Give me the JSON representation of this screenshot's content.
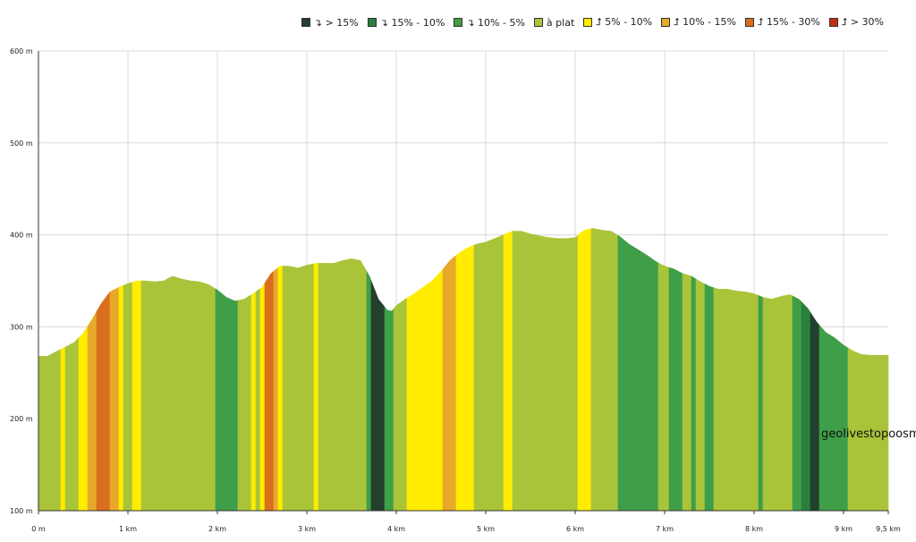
{
  "legend": [
    {
      "label": "↴ > 15%",
      "color": "#233f2e"
    },
    {
      "label": "↴ 15% - 10%",
      "color": "#2a7f3c"
    },
    {
      "label": "↴ 10% - 5%",
      "color": "#3f9e48"
    },
    {
      "label": "à plat",
      "color": "#aac43a"
    },
    {
      "label": "⮥ 5% - 10%",
      "color": "#ffec00"
    },
    {
      "label": "⮥ 10% - 15%",
      "color": "#e8a92a"
    },
    {
      "label": "⮥ 15% - 30%",
      "color": "#d96e1c"
    },
    {
      "label": "⮥ > 30%",
      "color": "#c62b15"
    }
  ],
  "watermark": "geolivestopoosm",
  "chart_data": {
    "type": "area",
    "title": "",
    "xlabel": "",
    "ylabel": "",
    "xlim": [
      0,
      9.5
    ],
    "ylim": [
      100,
      600
    ],
    "x_ticks": [
      {
        "v": 0,
        "label": "0 m"
      },
      {
        "v": 1,
        "label": "1 km"
      },
      {
        "v": 2,
        "label": "2 km"
      },
      {
        "v": 3,
        "label": "3 km"
      },
      {
        "v": 4,
        "label": "4 km"
      },
      {
        "v": 5,
        "label": "5 km"
      },
      {
        "v": 6,
        "label": "6 km"
      },
      {
        "v": 7,
        "label": "7 km"
      },
      {
        "v": 8,
        "label": "8 km"
      },
      {
        "v": 9,
        "label": "9 km"
      },
      {
        "v": 9.5,
        "label": "9,5 km"
      }
    ],
    "y_ticks": [
      {
        "v": 100,
        "label": "100 m"
      },
      {
        "v": 200,
        "label": "200 m"
      },
      {
        "v": 300,
        "label": "300 m"
      },
      {
        "v": 400,
        "label": "400 m"
      },
      {
        "v": 500,
        "label": "500 m"
      },
      {
        "v": 600,
        "label": "600 m"
      }
    ],
    "grid": true,
    "legend_position": "top-right",
    "profile": [
      [
        0,
        268
      ],
      [
        0.1,
        268
      ],
      [
        0.2,
        273
      ],
      [
        0.3,
        278
      ],
      [
        0.4,
        283
      ],
      [
        0.5,
        293
      ],
      [
        0.6,
        308
      ],
      [
        0.7,
        325
      ],
      [
        0.8,
        338
      ],
      [
        0.9,
        343
      ],
      [
        1.0,
        347
      ],
      [
        1.1,
        350
      ],
      [
        1.2,
        350
      ],
      [
        1.3,
        349
      ],
      [
        1.4,
        350
      ],
      [
        1.5,
        355
      ],
      [
        1.6,
        352
      ],
      [
        1.7,
        350
      ],
      [
        1.8,
        349
      ],
      [
        1.9,
        346
      ],
      [
        2.0,
        340
      ],
      [
        2.1,
        332
      ],
      [
        2.2,
        328
      ],
      [
        2.3,
        330
      ],
      [
        2.4,
        336
      ],
      [
        2.5,
        343
      ],
      [
        2.6,
        358
      ],
      [
        2.7,
        366
      ],
      [
        2.8,
        366
      ],
      [
        2.9,
        364
      ],
      [
        3.0,
        367
      ],
      [
        3.1,
        369
      ],
      [
        3.2,
        369
      ],
      [
        3.3,
        369
      ],
      [
        3.4,
        372
      ],
      [
        3.5,
        374
      ],
      [
        3.6,
        372
      ],
      [
        3.7,
        355
      ],
      [
        3.8,
        330
      ],
      [
        3.9,
        318
      ],
      [
        3.95,
        317
      ],
      [
        4.0,
        323
      ],
      [
        4.1,
        330
      ],
      [
        4.2,
        336
      ],
      [
        4.3,
        343
      ],
      [
        4.4,
        350
      ],
      [
        4.5,
        360
      ],
      [
        4.6,
        372
      ],
      [
        4.7,
        380
      ],
      [
        4.8,
        386
      ],
      [
        4.9,
        390
      ],
      [
        5.0,
        392
      ],
      [
        5.1,
        396
      ],
      [
        5.2,
        400
      ],
      [
        5.3,
        404
      ],
      [
        5.4,
        404
      ],
      [
        5.5,
        401
      ],
      [
        5.6,
        399
      ],
      [
        5.7,
        397
      ],
      [
        5.8,
        396
      ],
      [
        5.9,
        396
      ],
      [
        6.0,
        397
      ],
      [
        6.1,
        405
      ],
      [
        6.2,
        407
      ],
      [
        6.3,
        405
      ],
      [
        6.4,
        404
      ],
      [
        6.5,
        398
      ],
      [
        6.6,
        390
      ],
      [
        6.7,
        384
      ],
      [
        6.8,
        378
      ],
      [
        6.9,
        371
      ],
      [
        7.0,
        366
      ],
      [
        7.1,
        363
      ],
      [
        7.2,
        358
      ],
      [
        7.3,
        355
      ],
      [
        7.4,
        349
      ],
      [
        7.5,
        344
      ],
      [
        7.6,
        341
      ],
      [
        7.7,
        341
      ],
      [
        7.8,
        339
      ],
      [
        7.9,
        338
      ],
      [
        8.0,
        336
      ],
      [
        8.1,
        332
      ],
      [
        8.2,
        330
      ],
      [
        8.3,
        333
      ],
      [
        8.4,
        335
      ],
      [
        8.5,
        330
      ],
      [
        8.6,
        320
      ],
      [
        8.7,
        305
      ],
      [
        8.8,
        294
      ],
      [
        8.9,
        288
      ],
      [
        9.0,
        280
      ],
      [
        9.1,
        274
      ],
      [
        9.2,
        270
      ],
      [
        9.3,
        269
      ],
      [
        9.4,
        269
      ],
      [
        9.5,
        269
      ]
    ],
    "slope_segments": [
      [
        0,
        0.25,
        "flat"
      ],
      [
        0.25,
        0.3,
        "up5"
      ],
      [
        0.3,
        0.45,
        "flat"
      ],
      [
        0.45,
        0.55,
        "up5"
      ],
      [
        0.55,
        0.65,
        "up10"
      ],
      [
        0.65,
        0.8,
        "up15"
      ],
      [
        0.8,
        0.9,
        "up10"
      ],
      [
        0.9,
        0.95,
        "up5"
      ],
      [
        0.95,
        1.05,
        "flat"
      ],
      [
        1.05,
        1.15,
        "up5"
      ],
      [
        1.15,
        1.98,
        "flat"
      ],
      [
        1.98,
        2.23,
        "dn10"
      ],
      [
        2.23,
        2.38,
        "flat"
      ],
      [
        2.38,
        2.43,
        "up5"
      ],
      [
        2.43,
        2.48,
        "flat"
      ],
      [
        2.48,
        2.53,
        "up5"
      ],
      [
        2.53,
        2.63,
        "up15"
      ],
      [
        2.63,
        2.68,
        "up10"
      ],
      [
        2.68,
        2.73,
        "up5"
      ],
      [
        2.73,
        3.08,
        "flat"
      ],
      [
        3.08,
        3.13,
        "up5"
      ],
      [
        3.13,
        3.67,
        "flat"
      ],
      [
        3.67,
        3.72,
        "dn10"
      ],
      [
        3.72,
        3.87,
        "dn15plus"
      ],
      [
        3.87,
        3.97,
        "dn10"
      ],
      [
        3.97,
        4.12,
        "flat"
      ],
      [
        4.12,
        4.22,
        "up5"
      ],
      [
        4.22,
        4.52,
        "up5"
      ],
      [
        4.52,
        4.67,
        "up10"
      ],
      [
        4.67,
        4.87,
        "up5"
      ],
      [
        4.87,
        5.2,
        "flat"
      ],
      [
        5.2,
        5.3,
        "up5"
      ],
      [
        5.3,
        6.03,
        "flat"
      ],
      [
        6.03,
        6.18,
        "up5"
      ],
      [
        6.18,
        6.48,
        "flat"
      ],
      [
        6.48,
        6.93,
        "dn10"
      ],
      [
        6.93,
        7.05,
        "flat"
      ],
      [
        7.05,
        7.2,
        "dn10"
      ],
      [
        7.2,
        7.3,
        "flat"
      ],
      [
        7.3,
        7.35,
        "dn10"
      ],
      [
        7.35,
        7.45,
        "flat"
      ],
      [
        7.45,
        7.55,
        "dn10"
      ],
      [
        7.55,
        8.05,
        "flat"
      ],
      [
        8.05,
        8.1,
        "dn10"
      ],
      [
        8.1,
        8.43,
        "flat"
      ],
      [
        8.43,
        8.53,
        "dn10"
      ],
      [
        8.53,
        8.63,
        "dn15"
      ],
      [
        8.63,
        8.73,
        "dn15plus"
      ],
      [
        8.73,
        9.05,
        "dn10"
      ],
      [
        9.05,
        9.5,
        "flat"
      ]
    ],
    "slope_classes": {
      "dn15plus": "#233f2e",
      "dn15": "#2a7f3c",
      "dn10": "#3f9e48",
      "flat": "#aac43a",
      "up5": "#ffec00",
      "up10": "#e8a92a",
      "up15": "#d96e1c",
      "up30": "#c62b15"
    }
  }
}
